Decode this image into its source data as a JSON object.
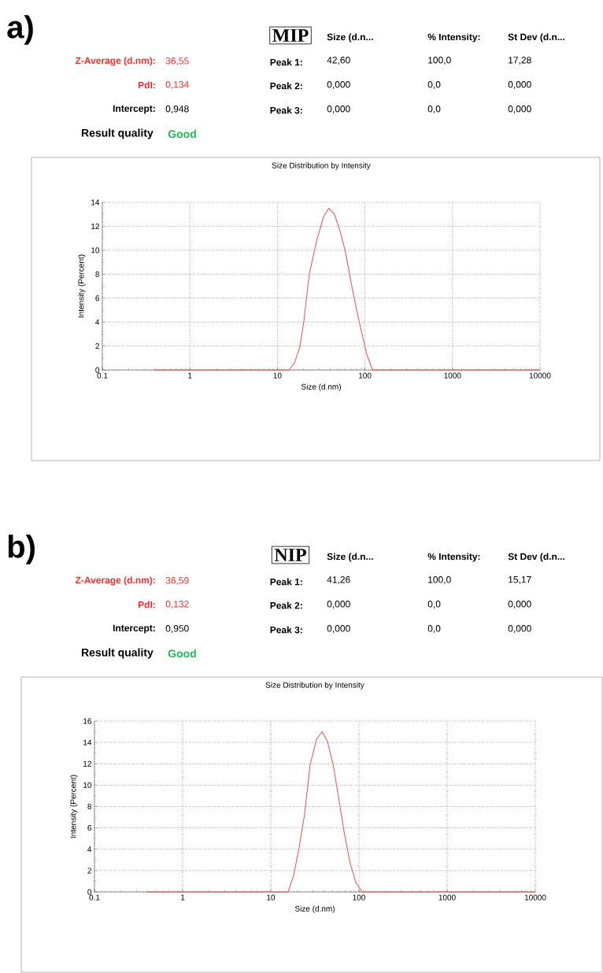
{
  "chart_data": [
    {
      "type": "other",
      "title": "MIP",
      "annotations": [
        "a)",
        "Z-Average (d.nm):",
        "36,55",
        "PdI:",
        "0,134",
        "Intercept:",
        "0,948",
        "Result quality",
        "Good",
        "Size (d.n...",
        "% Intensity:",
        "St Dev (d.n...",
        "Peak 1:",
        "42,60",
        "100,0",
        "17,28",
        "Peak 2:",
        "0,000",
        "0,0",
        "0,000",
        "Peak 3:",
        "0,000",
        "0,0",
        "0,000"
      ]
    },
    {
      "type": "line",
      "title": "Size Distribution by Intensity",
      "xlabel": "Size (d.nm)",
      "ylabel": "Intensity (Percent)",
      "log": "x",
      "grid": true,
      "color": "#f05050",
      "x": [
        0.39,
        13.6,
        15.7,
        18.0,
        20.0,
        23.1,
        28.3,
        33.7,
        38.6,
        44.8,
        51.5,
        59.7,
        68.6,
        79.4,
        91.3,
        105,
        122,
        10000
      ],
      "values": [
        0,
        0,
        0.6,
        1.9,
        4.0,
        8.0,
        10.9,
        12.8,
        13.5,
        13.0,
        11.7,
        9.9,
        7.5,
        5.2,
        3.2,
        1.3,
        0,
        0
      ],
      "xlim": [
        0.1,
        10000
      ],
      "ylim": [
        0,
        14
      ],
      "xticks": [
        0.1,
        1,
        10,
        100,
        1000,
        10000
      ],
      "yticks": [
        0,
        2,
        4,
        6,
        8,
        10,
        12,
        14
      ]
    },
    {
      "type": "other",
      "title": "NIP",
      "annotations": [
        "b)",
        "Z-Average (d.nm):",
        "36,59",
        "PdI:",
        "0,132",
        "Intercept:",
        "0,950",
        "Result quality",
        "Good",
        "Size (d.n...",
        "% Intensity:",
        "St Dev (d.n...",
        "Peak 1:",
        "41,26",
        "100,0",
        "15,17",
        "Peak 2:",
        "0,000",
        "0,0",
        "0,000",
        "Peak 3:",
        "0,000",
        "0,0",
        "0,000"
      ]
    },
    {
      "type": "line",
      "title": "Size Distribution by Intensity",
      "xlabel": "Size (d.nm)",
      "ylabel": "Intensity (Percent)",
      "log": "x",
      "grid": true,
      "color": "#f05050",
      "x": [
        0.39,
        15.7,
        18.1,
        20.9,
        24.3,
        27.9,
        33.0,
        38.2,
        43.9,
        51,
        58.6,
        67.9,
        79.4,
        92,
        108.6,
        10000
      ],
      "values": [
        0,
        0,
        1.5,
        4.1,
        7.4,
        11.9,
        14.3,
        15.0,
        14.1,
        11.9,
        8.9,
        5.6,
        2.7,
        0.9,
        0,
        0
      ],
      "xlim": [
        0.1,
        10000
      ],
      "ylim": [
        0,
        16
      ],
      "xticks": [
        0.1,
        1,
        10,
        100,
        1000,
        10000
      ],
      "yticks": [
        0,
        2,
        4,
        6,
        8,
        10,
        12,
        14,
        16
      ]
    }
  ]
}
